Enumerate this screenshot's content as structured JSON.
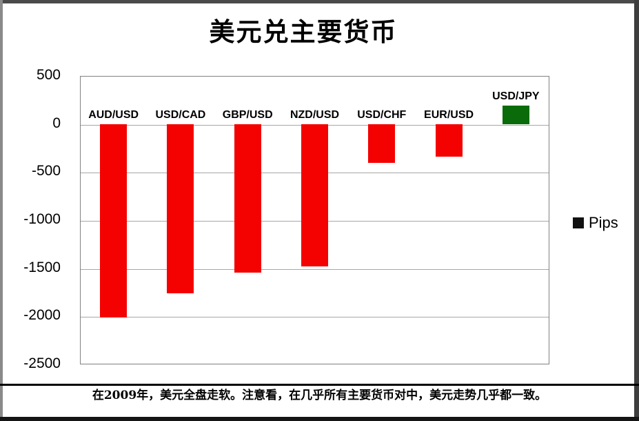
{
  "window": {
    "caption": "在2009年，美元全盘走软。注意看，在几乎所有主要货币对中，美元走势几乎都一致。"
  },
  "chart_data": {
    "type": "bar",
    "title": "美元兑主要货币",
    "categories": [
      "AUD/USD",
      "USD/CAD",
      "GBP/USD",
      "NZD/USD",
      "USD/CHF",
      "EUR/USD",
      "USD/JPY"
    ],
    "values": [
      -2010,
      -1760,
      -1545,
      -1480,
      -405,
      -340,
      190
    ],
    "bar_colors": [
      "#f40202",
      "#f40202",
      "#f40202",
      "#f40202",
      "#f40202",
      "#f40202",
      "#0a6b0a"
    ],
    "series_name": "Pips",
    "legend": {
      "label": "Pips",
      "swatch_color": "#111111",
      "position": "right"
    },
    "xlabel": "",
    "ylabel": "",
    "ylim": [
      -2500,
      500
    ],
    "yticks": [
      500,
      0,
      -500,
      -1000,
      -1500,
      -2000,
      -2500
    ],
    "grid": true,
    "gridline_color": "#a6a6a6",
    "plot_border_color": "#808080"
  }
}
